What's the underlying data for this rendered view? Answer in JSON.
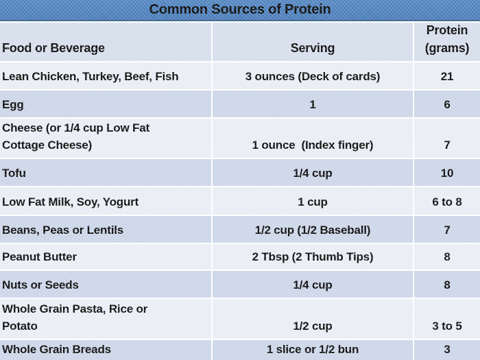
{
  "title": "Common Sources of Protein",
  "colors": {
    "title_bar_blue": "#4D80BC",
    "title_bar_edge": "#35618F",
    "header_row_bg": "#D6DEEC",
    "band_light": "#E9EDF4",
    "band_dark": "#CCD6E8",
    "separator": "#FFFFFF",
    "text": "#0B0B0B"
  },
  "table": {
    "headers": {
      "food": "Food or Beverage",
      "serving": "Serving",
      "protein": "Protein (grams)"
    },
    "rows": [
      {
        "food": "Lean Chicken, Turkey, Beef, Fish",
        "serving": "3 ounces (Deck of cards)",
        "protein": "21"
      },
      {
        "food": "Egg",
        "serving": "1",
        "protein": "6"
      },
      {
        "food": "Cheese (or 1/4 cup Low Fat\nCottage Cheese)",
        "serving": "1 ounce  (Index finger)",
        "protein": "7"
      },
      {
        "food": "Tofu",
        "serving": "1/4 cup",
        "protein": "10"
      },
      {
        "food": "Low Fat Milk, Soy, Yogurt",
        "serving": "1 cup",
        "protein": "6 to 8"
      },
      {
        "food": "Beans, Peas or Lentils",
        "serving": "1/2 cup (1/2 Baseball)",
        "protein": "7"
      },
      {
        "food": "Peanut Butter",
        "serving": "2 Tbsp (2 Thumb Tips)",
        "protein": "8"
      },
      {
        "food": "Nuts or Seeds",
        "serving": "1/4 cup",
        "protein": "8"
      },
      {
        "food": "Whole Grain Pasta, Rice or\nPotato",
        "serving": "1/2 cup",
        "protein": "3 to 5"
      },
      {
        "food": "Whole Grain Breads",
        "serving": "1 slice or 1/2 bun",
        "protein": "3"
      }
    ]
  }
}
